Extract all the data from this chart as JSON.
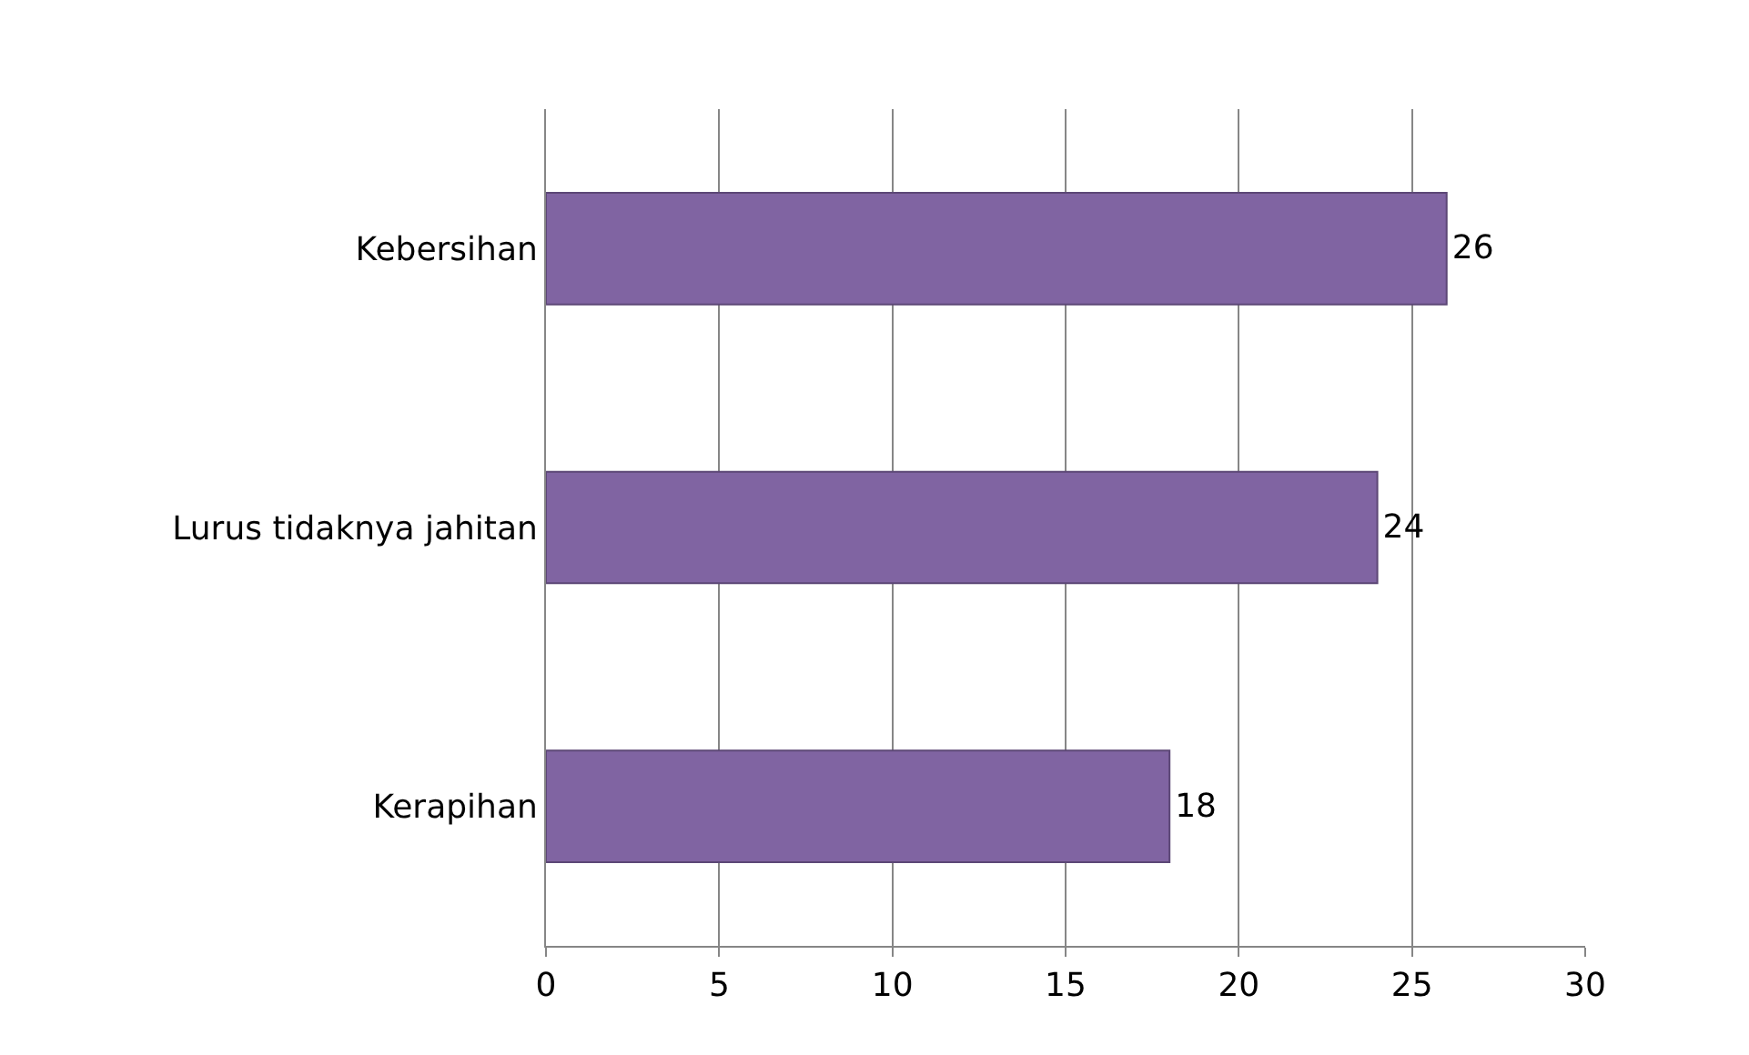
{
  "chart_data": {
    "type": "bar",
    "orientation": "horizontal",
    "categories": [
      "Kebersihan",
      "Lurus tidaknya jahitan",
      "Kerapihan"
    ],
    "values": [
      26,
      24,
      18
    ],
    "color": "#8064a2",
    "xlim": [
      0,
      30
    ],
    "xticks": [
      0,
      5,
      10,
      15,
      20,
      25,
      30
    ],
    "grid": "x",
    "data_labels": true
  }
}
